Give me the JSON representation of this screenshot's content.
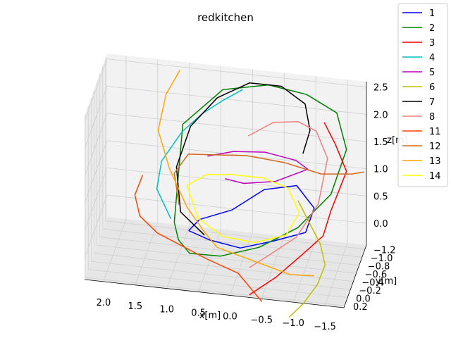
{
  "chart_data": {
    "type": "line",
    "title": "redkitchen",
    "xlabel": "x[m]",
    "ylabel": "y[m]",
    "zlabel": "z[m]",
    "x_ticks": [
      "2.0",
      "1.5",
      "1.0",
      "0.5",
      "0.0",
      "−0.5",
      "−1.0",
      "−1.5"
    ],
    "y_ticks": [
      "−1.2",
      "−1.0",
      "−0.8",
      "−0.6",
      "−0.4",
      "−0.2",
      "0.0",
      "0.2"
    ],
    "z_ticks": [
      "0.0",
      "0.5",
      "1.0",
      "1.5",
      "2.0",
      "2.5"
    ],
    "xlim": [
      -1.8,
      2.3
    ],
    "ylim": [
      -1.3,
      0.25
    ],
    "zlim": [
      -0.4,
      2.6
    ],
    "grid": true,
    "legend_position": "upper-right",
    "series": [
      {
        "name": "1",
        "color": "#0000ff",
        "x": [
          0.85,
          0.5,
          0.0,
          -0.5,
          -1.0,
          -1.1,
          -0.8,
          -0.3,
          0.2,
          0.7,
          0.85
        ],
        "y": [
          -0.6,
          -0.5,
          -0.45,
          -0.5,
          -0.6,
          -0.75,
          -0.85,
          -0.8,
          -0.75,
          -0.7,
          -0.6
        ],
        "z": [
          0.05,
          0.0,
          -0.05,
          0.1,
          0.25,
          0.6,
          0.9,
          0.8,
          0.4,
          0.2,
          0.05
        ]
      },
      {
        "name": "2",
        "color": "#008000",
        "x": [
          1.1,
          1.0,
          0.8,
          0.3,
          -0.3,
          -0.9,
          -1.4,
          -1.6,
          -1.4,
          -0.9,
          -0.3,
          0.4,
          1.0,
          1.1
        ],
        "y": [
          -0.7,
          -0.55,
          -0.45,
          -0.4,
          -0.45,
          -0.5,
          -0.6,
          -0.8,
          -1.0,
          -1.1,
          -1.1,
          -1.0,
          -0.85,
          -0.7
        ],
        "z": [
          0.1,
          -0.1,
          -0.25,
          -0.2,
          0.0,
          0.4,
          1.0,
          1.7,
          2.2,
          2.4,
          2.5,
          2.4,
          1.8,
          0.1
        ]
      },
      {
        "name": "3",
        "color": "#ff0000",
        "x": [
          -1.2,
          -1.4,
          -1.6,
          -1.5,
          -1.4,
          -1.3,
          -1.0,
          -0.6,
          -0.2
        ],
        "y": [
          -1.0,
          -0.9,
          -0.8,
          -0.7,
          -0.6,
          -0.5,
          -0.4,
          -0.3,
          -0.2
        ],
        "z": [
          2.0,
          1.7,
          1.3,
          1.0,
          0.7,
          0.3,
          0.0,
          -0.4,
          -0.7
        ]
      },
      {
        "name": "4",
        "color": "#00bfbf",
        "x": [
          1.2,
          1.4,
          1.3,
          1.0,
          0.7,
          0.4,
          0.1
        ],
        "y": [
          -0.9,
          -0.8,
          -0.7,
          -0.8,
          -0.9,
          -1.0,
          -1.05
        ],
        "z": [
          0.0,
          0.6,
          1.2,
          1.7,
          2.0,
          2.2,
          2.4
        ]
      },
      {
        "name": "5",
        "color": "#bf00bf",
        "x": [
          0.6,
          0.2,
          -0.3,
          -0.8,
          -1.0,
          -0.5,
          0.0,
          0.3
        ],
        "y": [
          -0.8,
          -0.85,
          -0.85,
          -0.8,
          -0.75,
          -0.7,
          -0.7,
          -0.7
        ],
        "z": [
          1.3,
          1.4,
          1.45,
          1.4,
          1.3,
          1.05,
          0.95,
          1.0
        ]
      },
      {
        "name": "6",
        "color": "#bfbf00",
        "x": [
          -0.9,
          -1.1,
          -1.3,
          -1.4,
          -1.3,
          -1.1,
          -0.9
        ],
        "y": [
          -0.5,
          -0.4,
          -0.3,
          -0.2,
          -0.1,
          0.0,
          0.1
        ],
        "z": [
          0.9,
          0.6,
          0.3,
          0.0,
          -0.3,
          -0.6,
          -0.8
        ]
      },
      {
        "name": "7",
        "color": "#000000",
        "x": [
          0.6,
          1.0,
          1.1,
          0.9,
          0.5,
          0.0,
          -0.5,
          -0.9,
          -1.0,
          -0.9
        ],
        "y": [
          -0.6,
          -0.7,
          -0.85,
          -0.95,
          -1.05,
          -1.1,
          -1.1,
          -1.0,
          -0.9,
          -0.85
        ],
        "z": [
          0.0,
          0.3,
          1.0,
          1.7,
          2.2,
          2.5,
          2.5,
          2.3,
          1.9,
          1.5
        ]
      },
      {
        "name": "8",
        "color": "#f08080",
        "x": [
          0.0,
          -0.4,
          -0.8,
          -1.1,
          -1.3,
          -1.2,
          -0.9,
          -0.5,
          -0.2
        ],
        "y": [
          -1.0,
          -1.0,
          -0.95,
          -0.9,
          -0.8,
          -0.6,
          -0.4,
          -0.3,
          -0.2
        ],
        "z": [
          1.6,
          1.9,
          2.0,
          1.9,
          1.5,
          0.8,
          0.3,
          0.0,
          -0.2
        ]
      },
      {
        "name": "11",
        "color": "#ff4500",
        "x": [
          1.6,
          1.7,
          1.6,
          1.3,
          0.9,
          0.5,
          0.0,
          -0.4
        ],
        "y": [
          -0.7,
          -0.6,
          -0.5,
          -0.4,
          -0.35,
          -0.3,
          -0.3,
          -0.2
        ],
        "z": [
          0.9,
          0.6,
          0.3,
          0.1,
          -0.05,
          -0.2,
          -0.4,
          -0.8
        ]
      },
      {
        "name": "12",
        "color": "#d2691e",
        "x": [
          1.0,
          1.1,
          0.9,
          0.5,
          0.0,
          -0.6,
          -1.2,
          -1.7,
          -1.9
        ],
        "y": [
          -0.6,
          -0.7,
          -0.8,
          -0.85,
          -0.85,
          -0.85,
          -0.8,
          -0.75,
          -0.7
        ],
        "z": [
          0.5,
          1.0,
          1.3,
          1.3,
          1.35,
          1.3,
          1.2,
          1.3,
          1.4
        ]
      },
      {
        "name": "13",
        "color": "#ffa500",
        "x": [
          1.1,
          1.3,
          1.4,
          1.2,
          0.9,
          0.6,
          0.4,
          -0.2,
          -0.8,
          -1.2
        ],
        "y": [
          -1.1,
          -1.0,
          -0.9,
          -0.8,
          -0.7,
          -0.65,
          -0.6,
          -0.5,
          -0.4,
          -0.3
        ],
        "z": [
          2.6,
          2.2,
          1.6,
          1.0,
          0.4,
          0.0,
          -0.2,
          -0.3,
          -0.4,
          -0.3
        ]
      },
      {
        "name": "14",
        "color": "#ffff00",
        "x": [
          0.9,
          0.6,
          0.2,
          -0.3,
          -0.7,
          -0.9,
          -0.7,
          -0.2,
          0.3,
          0.7,
          0.9
        ],
        "y": [
          -0.7,
          -0.75,
          -0.75,
          -0.75,
          -0.7,
          -0.6,
          -0.55,
          -0.55,
          -0.55,
          -0.6,
          -0.7
        ],
        "z": [
          0.8,
          1.0,
          1.05,
          1.05,
          0.95,
          0.6,
          0.2,
          0.0,
          0.05,
          0.3,
          0.8
        ]
      }
    ]
  }
}
